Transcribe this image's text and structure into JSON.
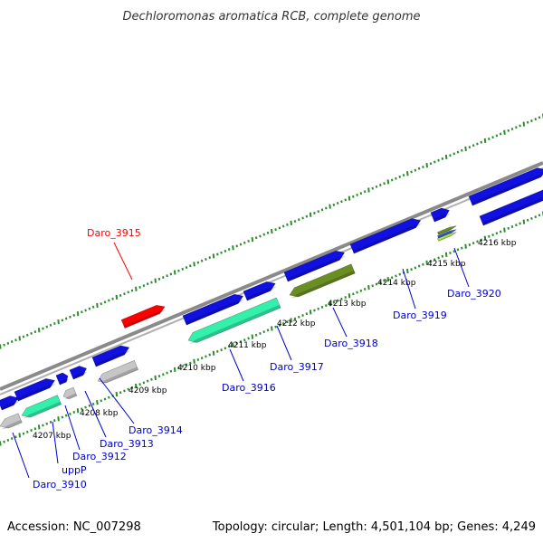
{
  "title": "Dechloromonas aromatica RCB, complete genome",
  "footer": {
    "accession": "Accession: NC_007298",
    "summary": "Topology: circular; Length: 4,501,104 bp; Genes: 4,249"
  },
  "colors": {
    "backbone": "#8a8a8a",
    "tick": "#2e8b2e",
    "label_default": "#0000cc",
    "label_highlight": "#ff0000",
    "gene_blue": "#1010e0",
    "gene_teal": "#33f0aa",
    "gene_gray": "#c6c6c6",
    "gene_olive": "#6b8e23",
    "gene_red": "#ff0000"
  },
  "ticks": [
    {
      "label": "4207 kbp"
    },
    {
      "label": "4208 kbp"
    },
    {
      "label": "4209 kbp"
    },
    {
      "label": "4210 kbp"
    },
    {
      "label": "4211 kbp"
    },
    {
      "label": "4212 kbp"
    },
    {
      "label": "4213 kbp"
    },
    {
      "label": "4214 kbp"
    },
    {
      "label": "4215 kbp"
    },
    {
      "label": "4216 kbp"
    }
  ],
  "genes": [
    {
      "name": "Daro_3910",
      "color": "gene_gray"
    },
    {
      "name": "uppP",
      "color": "gene_teal"
    },
    {
      "name": "Daro_3912",
      "color": "gene_gray"
    },
    {
      "name": "Daro_3913",
      "color": "gene_blue"
    },
    {
      "name": "Daro_3914",
      "color": "gene_gray"
    },
    {
      "name": "Daro_3915",
      "color": "gene_red",
      "highlight": true
    },
    {
      "name": "Daro_3916",
      "color": "gene_teal"
    },
    {
      "name": "Daro_3917",
      "color": "gene_teal"
    },
    {
      "name": "Daro_3918",
      "color": "gene_olive"
    },
    {
      "name": "Daro_3919",
      "color": "gene_blue"
    },
    {
      "name": "Daro_3920",
      "color": "gene_olive"
    }
  ]
}
